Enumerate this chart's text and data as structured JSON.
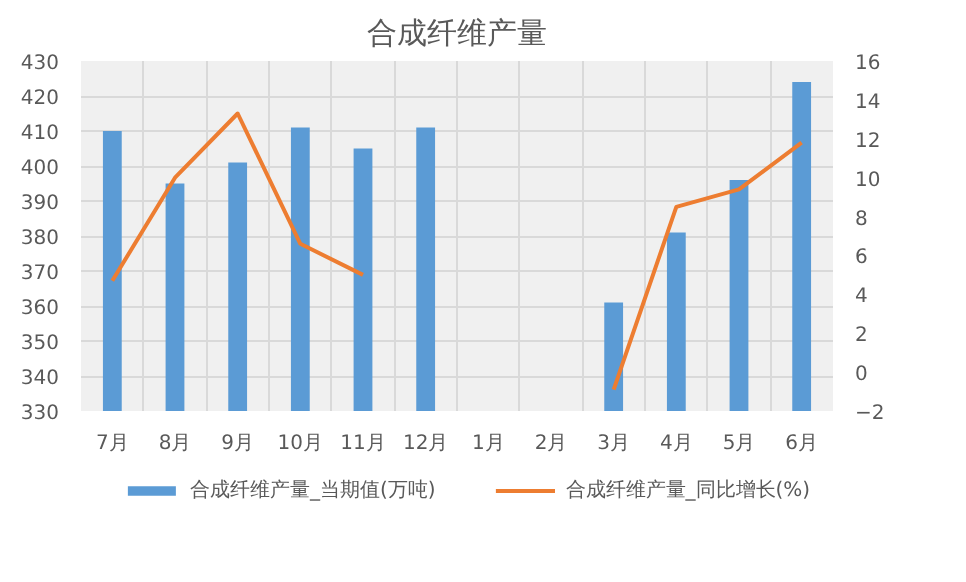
{
  "chart_data": {
    "type": "bar",
    "title": "合成纤维产量",
    "categories": [
      "7月",
      "8月",
      "9月",
      "10月",
      "11月",
      "12月",
      "1月",
      "2月",
      "3月",
      "4月",
      "5月",
      "6月"
    ],
    "series": [
      {
        "name": "合成纤维产量_当期值(万吨)",
        "color": "#5b9bd5",
        "values": [
          410,
          395,
          401,
          411,
          405,
          411,
          null,
          null,
          361,
          381,
          396,
          424
        ]
      },
      {
        "name": "合成纤维产量_同比增长(%)",
        "type": "line",
        "axis": "y2",
        "color": "#ed7d31",
        "values": [
          4.7,
          10.0,
          13.3,
          6.6,
          5.0,
          null,
          null,
          null,
          -0.9,
          8.5,
          9.4,
          11.8
        ]
      }
    ],
    "ylim": [
      330,
      430
    ],
    "yticks": [
      330,
      340,
      350,
      360,
      370,
      380,
      390,
      400,
      410,
      420,
      430
    ],
    "y2lim": [
      -2,
      16
    ],
    "y2ticks": [
      -2,
      0,
      2,
      4,
      6,
      8,
      10,
      12,
      14,
      16
    ],
    "grid": true,
    "legend": "bottom"
  }
}
